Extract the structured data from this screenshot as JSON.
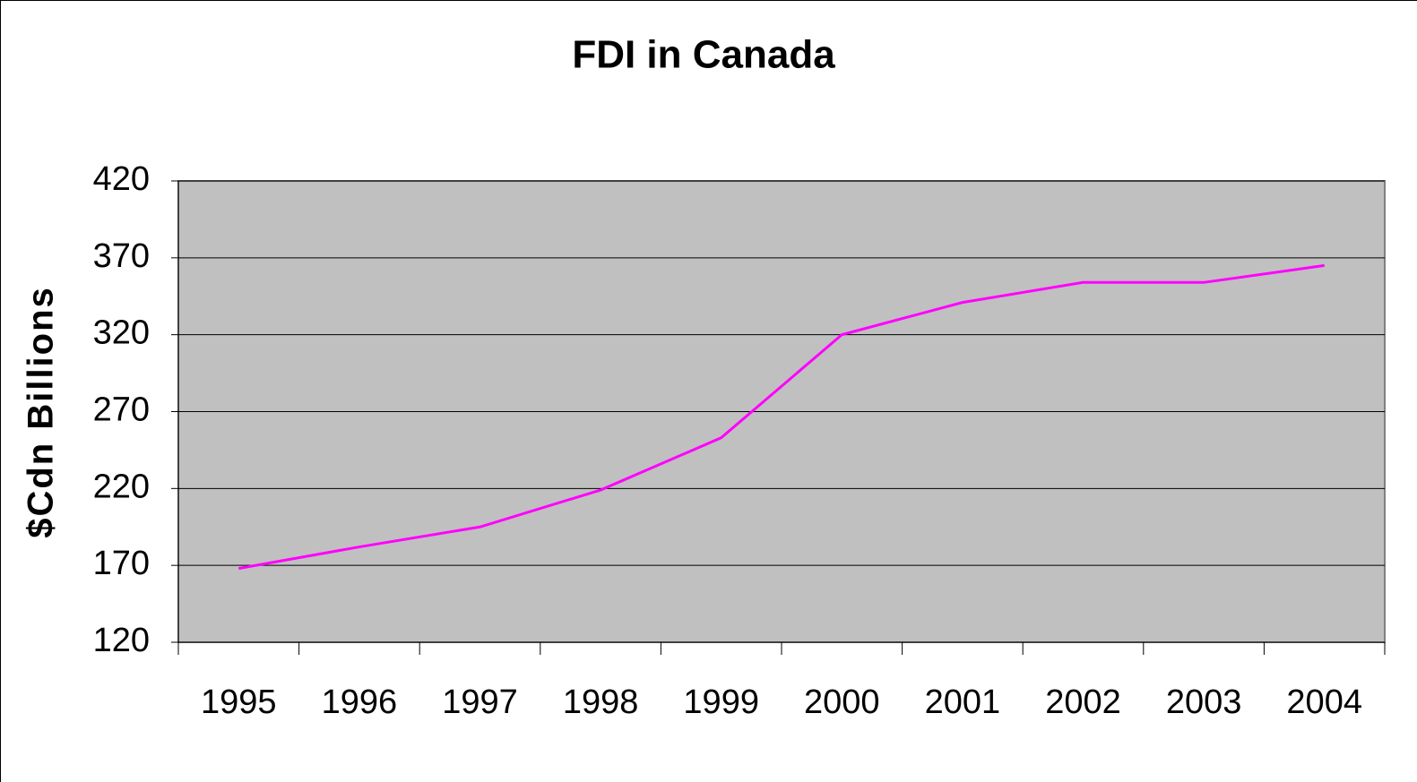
{
  "chart_data": {
    "type": "line",
    "title": "FDI in Canada",
    "y_label": "$Cdn Billions",
    "categories": [
      "1995",
      "1996",
      "1997",
      "1998",
      "1999",
      "2000",
      "2001",
      "2002",
      "2003",
      "2004"
    ],
    "series": [
      {
        "name": "FDI",
        "color": "#ff00ff",
        "values": [
          168,
          182,
          195,
          219,
          253,
          320,
          341,
          354,
          354,
          365
        ]
      }
    ],
    "ylim": [
      120,
      420
    ],
    "yticks": [
      120,
      170,
      220,
      270,
      320,
      370,
      420
    ],
    "grid": true,
    "plot_background": "#c0c0c0"
  }
}
